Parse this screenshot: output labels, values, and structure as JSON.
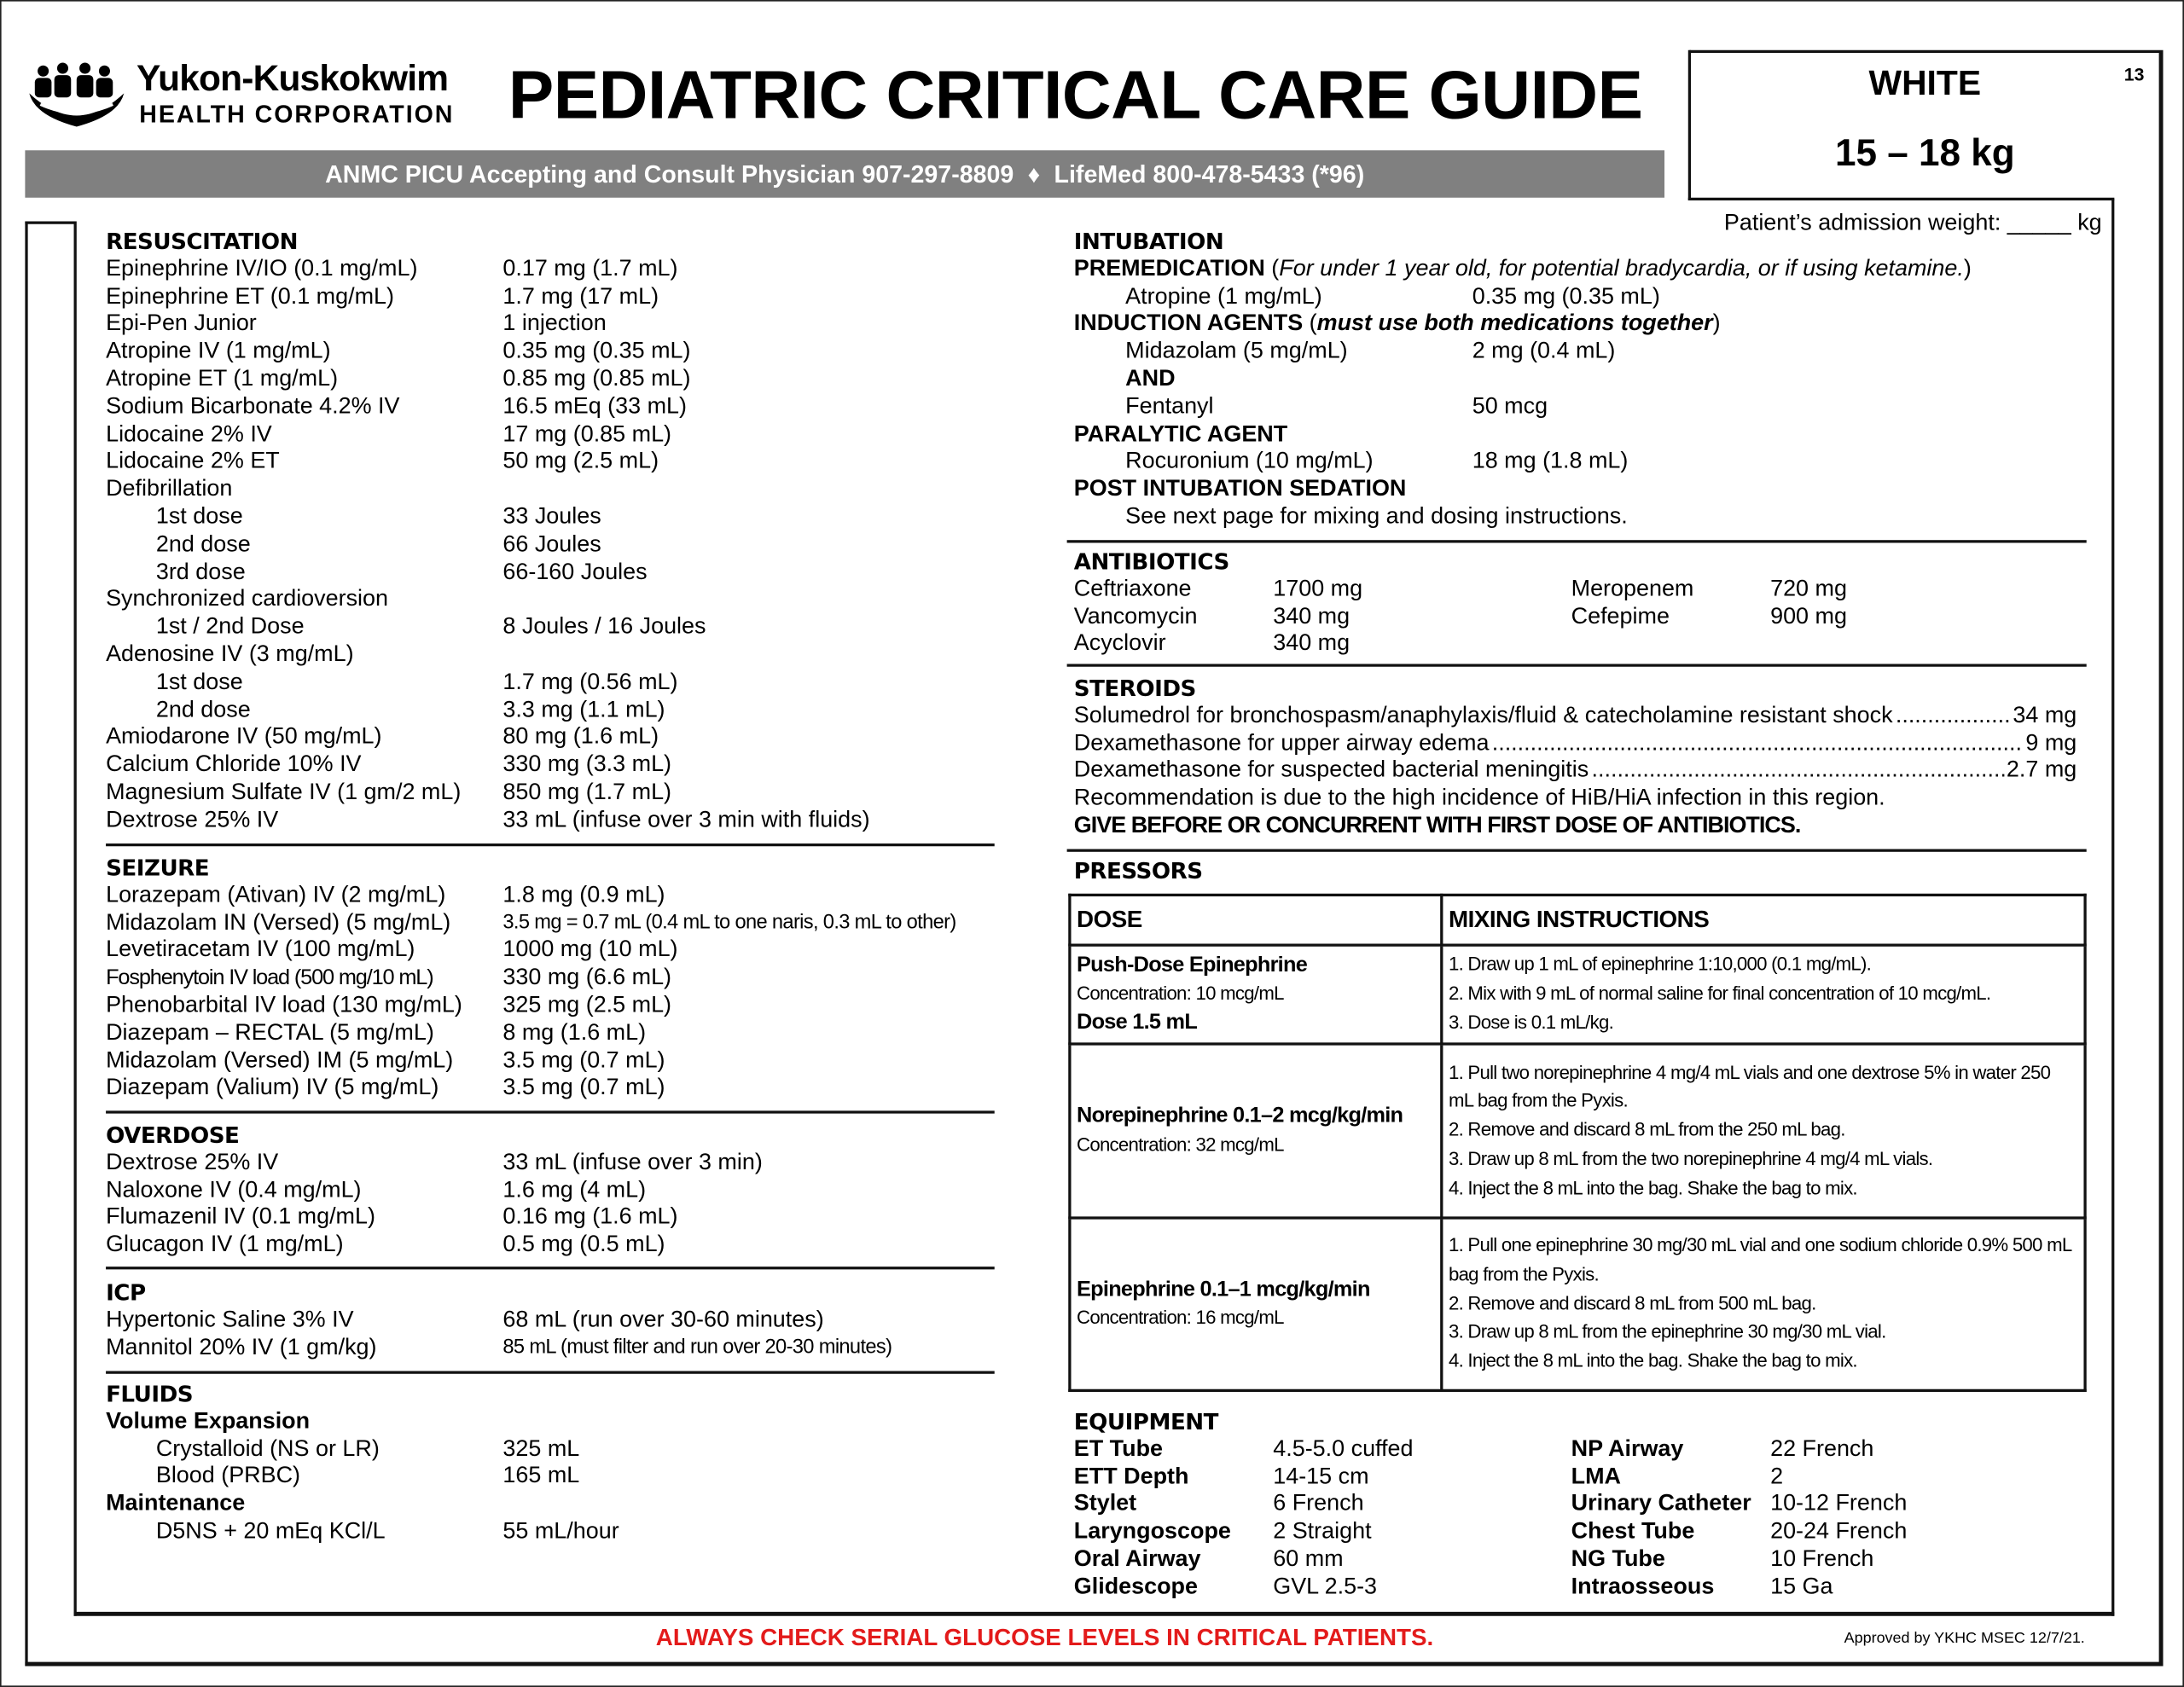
{
  "header": {
    "org_line1": "Yukon-Kuskokwim",
    "org_line2": "HEALTH CORPORATION",
    "title": "PEDIATRIC CRITICAL CARE GUIDE",
    "contact_left": "ANMC PICU Accepting and Consult Physician 907-297-8809",
    "separator": "♦",
    "contact_right": "LifeMed 800-478-5433 (*96)",
    "color_zone": "WHITE",
    "weight_range": "15 – 18 kg",
    "page_number": "13",
    "admission_weight_label": "Patient’s admission weight: _____ kg"
  },
  "left": [
    {
      "heading": "RESUSCITATION",
      "rows": [
        {
          "label": "Epinephrine IV/IO (0.1 mg/mL)",
          "value": "0.17 mg (1.7 mL)"
        },
        {
          "label": "Epinephrine ET (0.1 mg/mL)",
          "value": "1.7 mg (17 mL)"
        },
        {
          "label": "Epi-Pen Junior",
          "value": "1 injection"
        },
        {
          "label": "Atropine IV (1 mg/mL)",
          "value": "0.35 mg (0.35 mL)"
        },
        {
          "label": "Atropine ET (1 mg/mL)",
          "value": "0.85 mg (0.85 mL)"
        },
        {
          "label": "Sodium Bicarbonate 4.2% IV",
          "value": "16.5 mEq (33 mL)"
        },
        {
          "label": "Lidocaine 2% IV",
          "value": "17 mg (0.85 mL)"
        },
        {
          "label": "Lidocaine 2% ET",
          "value": "50 mg (2.5 mL)"
        },
        {
          "label": "Defibrillation",
          "value": ""
        },
        {
          "label": "1st dose",
          "value": "33 Joules",
          "indent": true
        },
        {
          "label": "2nd dose",
          "value": "66 Joules",
          "indent": true
        },
        {
          "label": "3rd dose",
          "value": "66-160 Joules",
          "indent": true
        },
        {
          "label": "Synchronized cardioversion",
          "value": ""
        },
        {
          "label": "1st / 2nd Dose",
          "value": "8 Joules / 16 Joules",
          "indent": true
        },
        {
          "label": "Adenosine IV (3 mg/mL)",
          "value": ""
        },
        {
          "label": "1st dose",
          "value": "1.7 mg (0.56 mL)",
          "indent": true
        },
        {
          "label": "2nd dose",
          "value": "3.3 mg (1.1 mL)",
          "indent": true
        },
        {
          "label": "Amiodarone IV (50 mg/mL)",
          "value": "80 mg (1.6 mL)"
        },
        {
          "label": "Calcium Chloride 10% IV",
          "value": "330 mg (3.3 mL)"
        },
        {
          "label": "Magnesium Sulfate IV (1 gm/2 mL)",
          "value": "850 mg (1.7 mL)"
        },
        {
          "label": "Dextrose 25% IV",
          "value": "33 mL (infuse over 3 min with fluids)"
        }
      ]
    },
    {
      "heading": "SEIZURE",
      "rows": [
        {
          "label": "Lorazepam (Ativan) IV (2 mg/mL)",
          "value": "1.8 mg (0.9 mL)"
        },
        {
          "label": "Midazolam IN (Versed) (5 mg/mL)",
          "value": "3.5 mg = 0.7 mL (0.4 mL to one naris, 0.3 mL to other)"
        },
        {
          "label": "Levetiracetam IV (100 mg/mL)",
          "value": "1000 mg (10 mL)"
        },
        {
          "label": "Fosphenytoin IV load (500 mg/10 mL)",
          "value": "330 mg (6.6 mL)"
        },
        {
          "label": "Phenobarbital IV load (130 mg/mL)",
          "value": "325 mg (2.5 mL)"
        },
        {
          "label": "Diazepam – RECTAL (5 mg/mL)",
          "value": "8 mg (1.6 mL)"
        },
        {
          "label": "Midazolam (Versed) IM (5 mg/mL)",
          "value": "3.5 mg (0.7 mL)"
        },
        {
          "label": "Diazepam (Valium) IV (5 mg/mL)",
          "value": "3.5 mg (0.7 mL)"
        }
      ]
    },
    {
      "heading": "OVERDOSE",
      "rows": [
        {
          "label": "Dextrose 25% IV",
          "value": "33 mL (infuse over 3 min)"
        },
        {
          "label": "Naloxone IV (0.4 mg/mL)",
          "value": "1.6 mg (4 mL)"
        },
        {
          "label": "Flumazenil IV (0.1 mg/mL)",
          "value": "0.16 mg (1.6 mL)"
        },
        {
          "label": "Glucagon IV (1 mg/mL)",
          "value": "0.5 mg (0.5 mL)"
        }
      ]
    },
    {
      "heading": "ICP",
      "rows": [
        {
          "label": "Hypertonic Saline 3% IV",
          "value": "68 mL (run over 30-60 minutes)"
        },
        {
          "label": "Mannitol 20% IV (1 gm/kg)",
          "value": "85 mL (must filter and run over 20-30 minutes)"
        }
      ]
    },
    {
      "heading": "FLUIDS",
      "rows": [
        {
          "label": "Volume Expansion",
          "value": "",
          "bold": true
        },
        {
          "label": "Crystalloid (NS or LR)",
          "value": "325 mL",
          "indent": true
        },
        {
          "label": "Blood (PRBC)",
          "value": "165 mL",
          "indent": true
        },
        {
          "label": "Maintenance",
          "value": "",
          "bold": true
        },
        {
          "label": "D5NS + 20 mEq KCl/L",
          "value": "55 mL/hour",
          "indent": true
        }
      ]
    }
  ],
  "intubation": {
    "heading": "INTUBATION",
    "premed_label": "PREMEDICATION",
    "premed_note": "For under 1 year old, for potential bradycardia, or if using ketamine.",
    "premed_rows": [
      {
        "label": "Atropine (1 mg/mL)",
        "value": "0.35 mg (0.35 mL)"
      }
    ],
    "induction_label": "INDUCTION AGENTS",
    "induction_note": "must use both medications together",
    "induction_rows": [
      {
        "label": "Midazolam (5 mg/mL)",
        "value": "2 mg (0.4 mL)"
      },
      {
        "label": "AND",
        "value": "",
        "bold": true
      },
      {
        "label": "Fentanyl",
        "value": "50 mcg"
      }
    ],
    "paralytic_label": "PARALYTIC AGENT",
    "paralytic_rows": [
      {
        "label": "Rocuronium (10 mg/mL)",
        "value": "18 mg (1.8 mL)"
      }
    ],
    "post_label": "POST INTUBATION SEDATION",
    "post_note": "See next page for mixing and dosing instructions."
  },
  "antibiotics": {
    "heading": "ANTIBIOTICS",
    "items": [
      [
        "Ceftriaxone",
        "1700 mg",
        "Meropenem",
        "720 mg"
      ],
      [
        "Vancomycin",
        "340 mg",
        "Cefepime",
        "900 mg"
      ],
      [
        "Acyclovir",
        "340 mg",
        "",
        ""
      ]
    ]
  },
  "steroids": {
    "heading": "STEROIDS",
    "rows": [
      {
        "label": "Solumedrol for bronchospasm/anaphylaxis/fluid & catecholamine resistant shock",
        "value": "34 mg"
      },
      {
        "label": "Dexamethasone for upper airway edema",
        "value": "9 mg"
      },
      {
        "label": "Dexamethasone for suspected bacterial meningitis",
        "value": "2.7 mg"
      }
    ],
    "note": "Recommendation is due to the high incidence of HiB/HiA infection in this region.",
    "warning": "GIVE BEFORE OR CONCURRENT WITH FIRST DOSE OF ANTIBIOTICS."
  },
  "pressors": {
    "heading": "PRESSORS",
    "col_dose": "DOSE",
    "col_mixing": "MIXING INSTRUCTIONS",
    "rows": [
      {
        "name": "Push-Dose Epinephrine",
        "concentration": "Concentration: 10 mcg/mL",
        "dose": "Dose 1.5 mL",
        "steps": [
          "1. Draw up 1 mL of epinephrine 1:10,000 (0.1 mg/mL).",
          "2. Mix with 9 mL of normal saline for final concentration of 10 mcg/mL.",
          "3. Dose is 0.1 mL/kg."
        ]
      },
      {
        "name": "Norepinephrine 0.1–2 mcg/kg/min",
        "concentration": "Concentration: 32 mcg/mL",
        "dose": "",
        "steps": [
          "1. Pull two norepinephrine 4 mg/4 mL vials and one dextrose 5% in water 250 mL bag from the Pyxis.",
          "2. Remove and discard 8 mL from the 250 mL bag.",
          "3. Draw up 8 mL from the two norepinephrine 4 mg/4 mL vials.",
          "4. Inject the 8 mL into the bag. Shake the bag to mix."
        ]
      },
      {
        "name": "Epinephrine 0.1–1 mcg/kg/min",
        "concentration": "Concentration: 16 mcg/mL",
        "dose": "",
        "steps": [
          "1. Pull one epinephrine 30 mg/30 mL vial and one sodium chloride 0.9% 500 mL bag from the Pyxis.",
          "2. Remove and discard 8 mL from 500 mL bag.",
          "3. Draw up 8 mL from the epinephrine 30 mg/30 mL vial.",
          "4. Inject the 8 mL into the bag. Shake the bag to mix."
        ]
      }
    ]
  },
  "equipment": {
    "heading": "EQUIPMENT",
    "items": [
      [
        "ET Tube",
        "4.5-5.0 cuffed",
        "NP Airway",
        "22 French"
      ],
      [
        "ETT Depth",
        "14-15 cm",
        "LMA",
        "2"
      ],
      [
        "Stylet",
        "6 French",
        "Urinary Catheter",
        "10-12 French"
      ],
      [
        "Laryngoscope",
        "2 Straight",
        "Chest Tube",
        "20-24 French"
      ],
      [
        "Oral Airway",
        "60 mm",
        "NG Tube",
        "10 French"
      ],
      [
        "Glidescope",
        "GVL 2.5-3",
        "Intraosseous",
        "15 Ga"
      ]
    ]
  },
  "footer": {
    "warning": "ALWAYS CHECK SERIAL GLUCOSE LEVELS IN CRITICAL PATIENTS.",
    "warning_color": "#e31b1b",
    "approved": "Approved by YKHC MSEC 12/7/21."
  }
}
